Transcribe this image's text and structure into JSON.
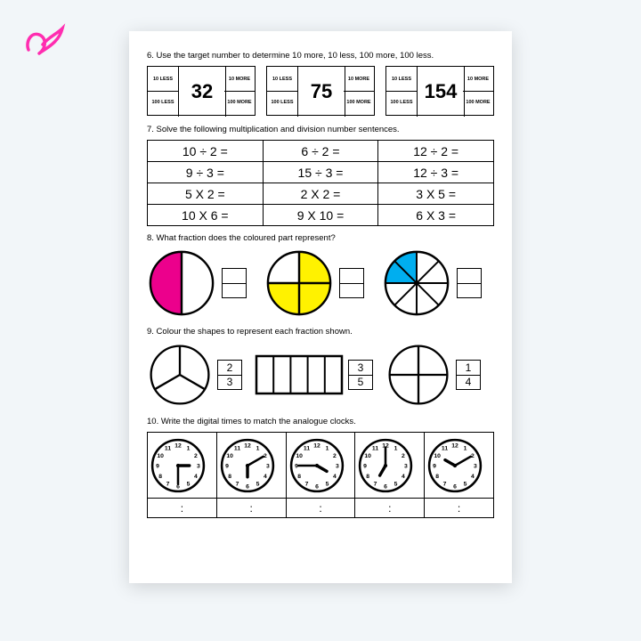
{
  "brand": {
    "color": "#ff2db0"
  },
  "q6": {
    "instr": "6. Use the target number to determine 10 more, 10 less, 100 more, 100 less.",
    "labels": {
      "tl": "10 LESS",
      "tr": "10 MORE",
      "bl": "100 LESS",
      "br": "100 MORE"
    },
    "targets": [
      "32",
      "75",
      "154"
    ]
  },
  "q7": {
    "instr": "7. Solve the following multiplication and division number sentences.",
    "rows": [
      [
        "10 ÷ 2 =",
        "6 ÷ 2 =",
        "12 ÷ 2 ="
      ],
      [
        "9 ÷ 3 =",
        "15 ÷ 3 =",
        "12 ÷ 3 ="
      ],
      [
        "5 X 2 =",
        "2 X 2 =",
        "3 X 5 ="
      ],
      [
        "10 X 6 =",
        "9 X 10 =",
        "6 X 3 ="
      ]
    ]
  },
  "q8": {
    "instr": "8. What fraction does the coloured part represent?",
    "colors": {
      "pink": "#ec008c",
      "yellow": "#fff200",
      "cyan": "#00aeef"
    },
    "circles": [
      {
        "slices": 2,
        "filled": [
          0
        ],
        "color": "#ec008c"
      },
      {
        "slices": 4,
        "filled": [
          0,
          1,
          2
        ],
        "color": "#fff200"
      },
      {
        "slices": 8,
        "filled": [
          0,
          1
        ],
        "color": "#00aeef"
      }
    ]
  },
  "q9": {
    "instr": "9. Colour the shapes to represent each fraction shown.",
    "items": [
      {
        "type": "circle3",
        "frac": [
          "2",
          "3"
        ]
      },
      {
        "type": "rect5",
        "frac": [
          "3",
          "5"
        ]
      },
      {
        "type": "circle4",
        "frac": [
          "1",
          "4"
        ]
      }
    ]
  },
  "q10": {
    "instr": "10. Write the digital times to match the analogue clocks.",
    "clocks": [
      {
        "hour": 3,
        "minute": 6
      },
      {
        "hour": 6,
        "minute": 2
      },
      {
        "hour": 4,
        "minute": 9
      },
      {
        "hour": 7,
        "minute": 12
      },
      {
        "hour": 10,
        "minute": 2
      }
    ],
    "sep": ":"
  }
}
